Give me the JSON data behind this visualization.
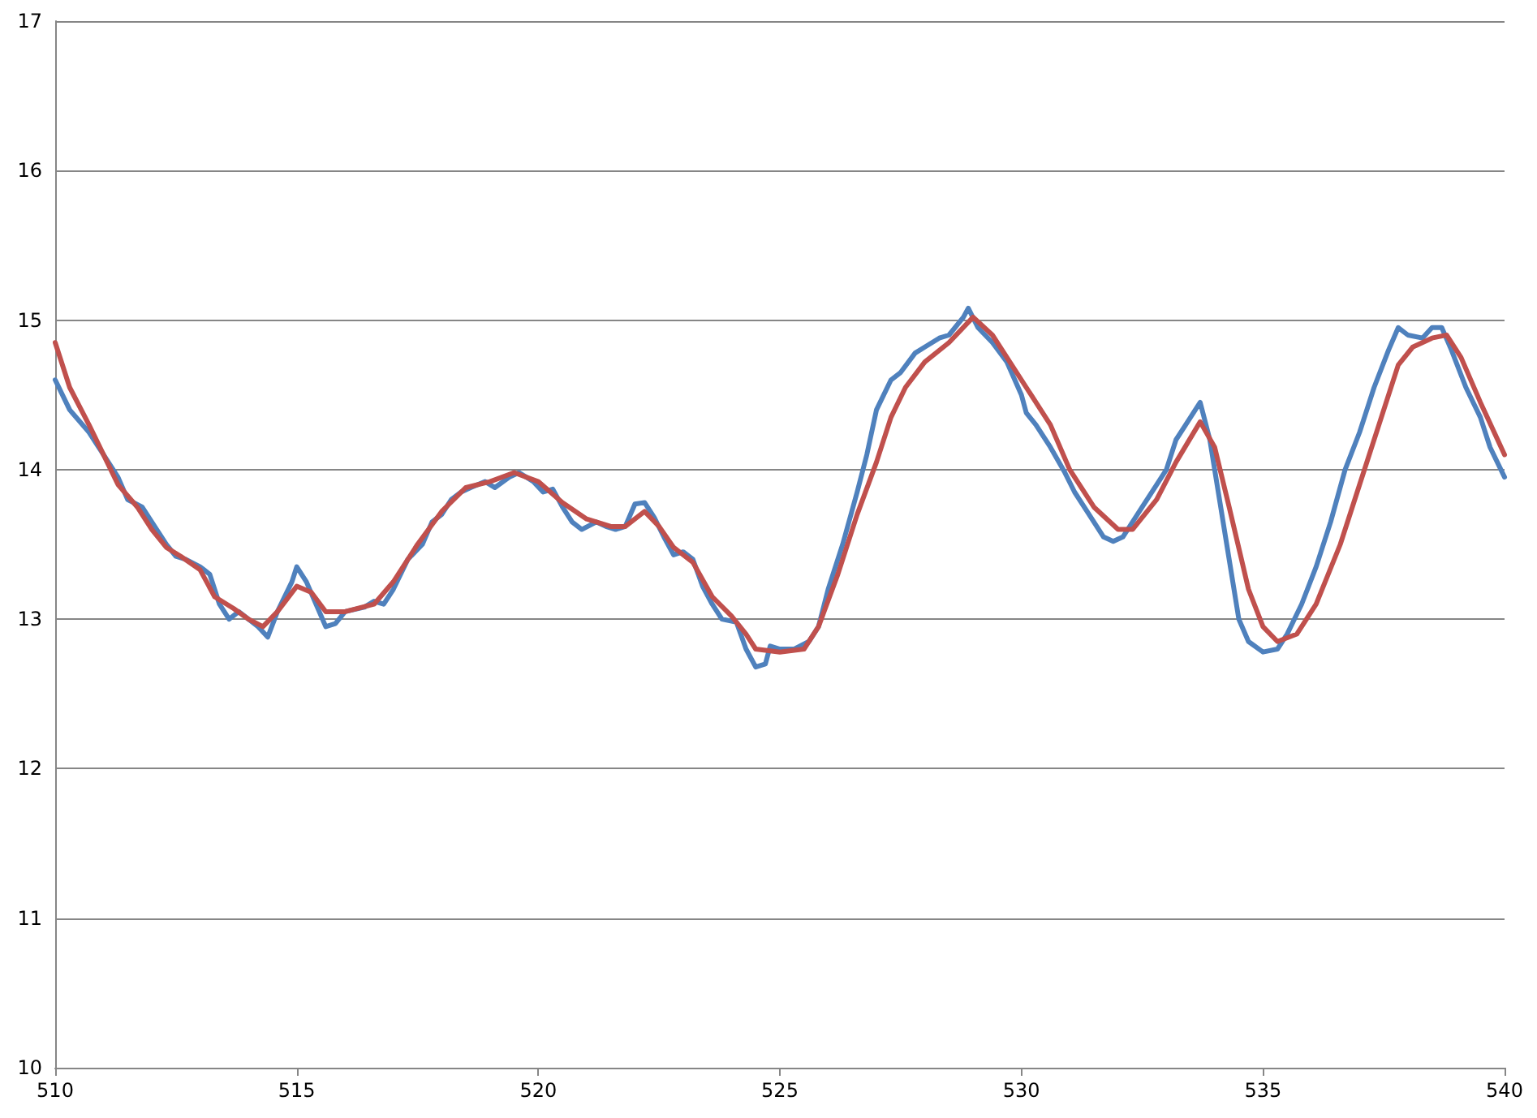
{
  "chart_data": {
    "type": "line",
    "xlim": [
      510,
      540
    ],
    "xticks": [
      510,
      515,
      520,
      525,
      530,
      535,
      540
    ],
    "ylim": [
      10,
      17
    ],
    "yticks": [
      10,
      11,
      12,
      13,
      14,
      15,
      16,
      17
    ],
    "grid": "y",
    "marker": "none",
    "line_style": "solid",
    "series": [
      {
        "color": "#4f81bd",
        "x": [
          510,
          510.3,
          510.7,
          511,
          511.3,
          511.5,
          511.8,
          512,
          512.3,
          512.5,
          512.7,
          513,
          513.2,
          513.4,
          513.6,
          513.8,
          514,
          514.2,
          514.4,
          514.6,
          514.9,
          515,
          515.2,
          515.4,
          515.6,
          515.8,
          516,
          516.4,
          516.6,
          516.8,
          517,
          517.3,
          517.6,
          517.8,
          518,
          518.2,
          518.4,
          518.6,
          518.9,
          519.1,
          519.4,
          519.6,
          519.9,
          520.1,
          520.3,
          520.5,
          520.7,
          520.9,
          521.2,
          521.4,
          521.6,
          521.8,
          522,
          522.2,
          522.4,
          522.6,
          522.8,
          523,
          523.2,
          523.4,
          523.6,
          523.8,
          524.1,
          524.3,
          524.5,
          524.7,
          524.8,
          525,
          525.3,
          525.6,
          525.8,
          526,
          526.3,
          526.6,
          526.8,
          527,
          527.3,
          527.5,
          527.8,
          528,
          528.3,
          528.5,
          528.8,
          528.9,
          529.1,
          529.4,
          529.7,
          530,
          530.1,
          530.3,
          530.6,
          530.9,
          531.1,
          531.4,
          531.7,
          531.9,
          532.1,
          532.5,
          532.8,
          533,
          533.2,
          533.4,
          533.7,
          533.9,
          534.1,
          534.3,
          534.5,
          534.7,
          535,
          535.3,
          535.5,
          535.8,
          536.1,
          536.4,
          536.7,
          537,
          537.3,
          537.6,
          537.8,
          538,
          538.3,
          538.5,
          538.7,
          538.9,
          539.2,
          539.5,
          539.7,
          540
        ],
        "values": [
          14.6,
          14.4,
          14.25,
          14.1,
          13.95,
          13.8,
          13.75,
          13.65,
          13.5,
          13.42,
          13.4,
          13.35,
          13.3,
          13.1,
          13,
          13.05,
          13,
          12.95,
          12.88,
          13.05,
          13.25,
          13.35,
          13.25,
          13.1,
          12.95,
          12.97,
          13.05,
          13.08,
          13.12,
          13.1,
          13.2,
          13.4,
          13.5,
          13.65,
          13.7,
          13.8,
          13.85,
          13.88,
          13.92,
          13.88,
          13.95,
          13.98,
          13.92,
          13.85,
          13.87,
          13.75,
          13.65,
          13.6,
          13.65,
          13.62,
          13.6,
          13.62,
          13.77,
          13.78,
          13.68,
          13.55,
          13.43,
          13.45,
          13.4,
          13.22,
          13.1,
          13,
          12.98,
          12.8,
          12.68,
          12.7,
          12.82,
          12.8,
          12.8,
          12.85,
          12.95,
          13.2,
          13.5,
          13.85,
          14.1,
          14.4,
          14.6,
          14.65,
          14.78,
          14.82,
          14.88,
          14.9,
          15.02,
          15.08,
          14.95,
          14.85,
          14.72,
          14.5,
          14.38,
          14.3,
          14.15,
          13.98,
          13.85,
          13.7,
          13.55,
          13.52,
          13.55,
          13.75,
          13.9,
          14,
          14.2,
          14.3,
          14.45,
          14.2,
          13.8,
          13.4,
          13,
          12.85,
          12.78,
          12.8,
          12.9,
          13.1,
          13.35,
          13.65,
          14,
          14.25,
          14.55,
          14.8,
          14.95,
          14.9,
          14.88,
          14.95,
          14.95,
          14.8,
          14.55,
          14.35,
          14.15,
          13.95
        ]
      },
      {
        "color": "#c0504d",
        "x": [
          510,
          510.3,
          510.7,
          511,
          511.3,
          511.7,
          512,
          512.3,
          512.6,
          513,
          513.3,
          513.7,
          514,
          514.3,
          514.6,
          515,
          515.3,
          515.6,
          516,
          516.6,
          517,
          517.5,
          518,
          518.5,
          519,
          519.5,
          520,
          520.5,
          521,
          521.5,
          521.8,
          522.2,
          522.5,
          522.8,
          523.2,
          523.6,
          524,
          524.3,
          524.5,
          525,
          525.5,
          525.8,
          526.2,
          526.6,
          527,
          527.3,
          527.6,
          528,
          528.5,
          529,
          529.4,
          529.8,
          530.2,
          530.6,
          531,
          531.5,
          532,
          532.3,
          532.8,
          533.2,
          533.7,
          534,
          534.3,
          534.7,
          535,
          535.3,
          535.7,
          536.1,
          536.6,
          537,
          537.4,
          537.8,
          538.1,
          538.5,
          538.8,
          539.1,
          539.5,
          540
        ],
        "values": [
          14.85,
          14.55,
          14.3,
          14.1,
          13.9,
          13.75,
          13.6,
          13.48,
          13.42,
          13.33,
          13.15,
          13.07,
          13,
          12.95,
          13.05,
          13.22,
          13.18,
          13.05,
          13.05,
          13.1,
          13.25,
          13.5,
          13.72,
          13.88,
          13.92,
          13.98,
          13.92,
          13.78,
          13.67,
          13.62,
          13.62,
          13.72,
          13.62,
          13.48,
          13.38,
          13.15,
          13.02,
          12.9,
          12.8,
          12.78,
          12.8,
          12.95,
          13.3,
          13.7,
          14.05,
          14.35,
          14.55,
          14.72,
          14.85,
          15.02,
          14.9,
          14.7,
          14.5,
          14.3,
          14,
          13.75,
          13.6,
          13.6,
          13.8,
          14.05,
          14.32,
          14.15,
          13.75,
          13.2,
          12.95,
          12.85,
          12.9,
          13.1,
          13.5,
          13.9,
          14.3,
          14.7,
          14.82,
          14.88,
          14.9,
          14.75,
          14.45,
          14.1
        ]
      }
    ]
  }
}
